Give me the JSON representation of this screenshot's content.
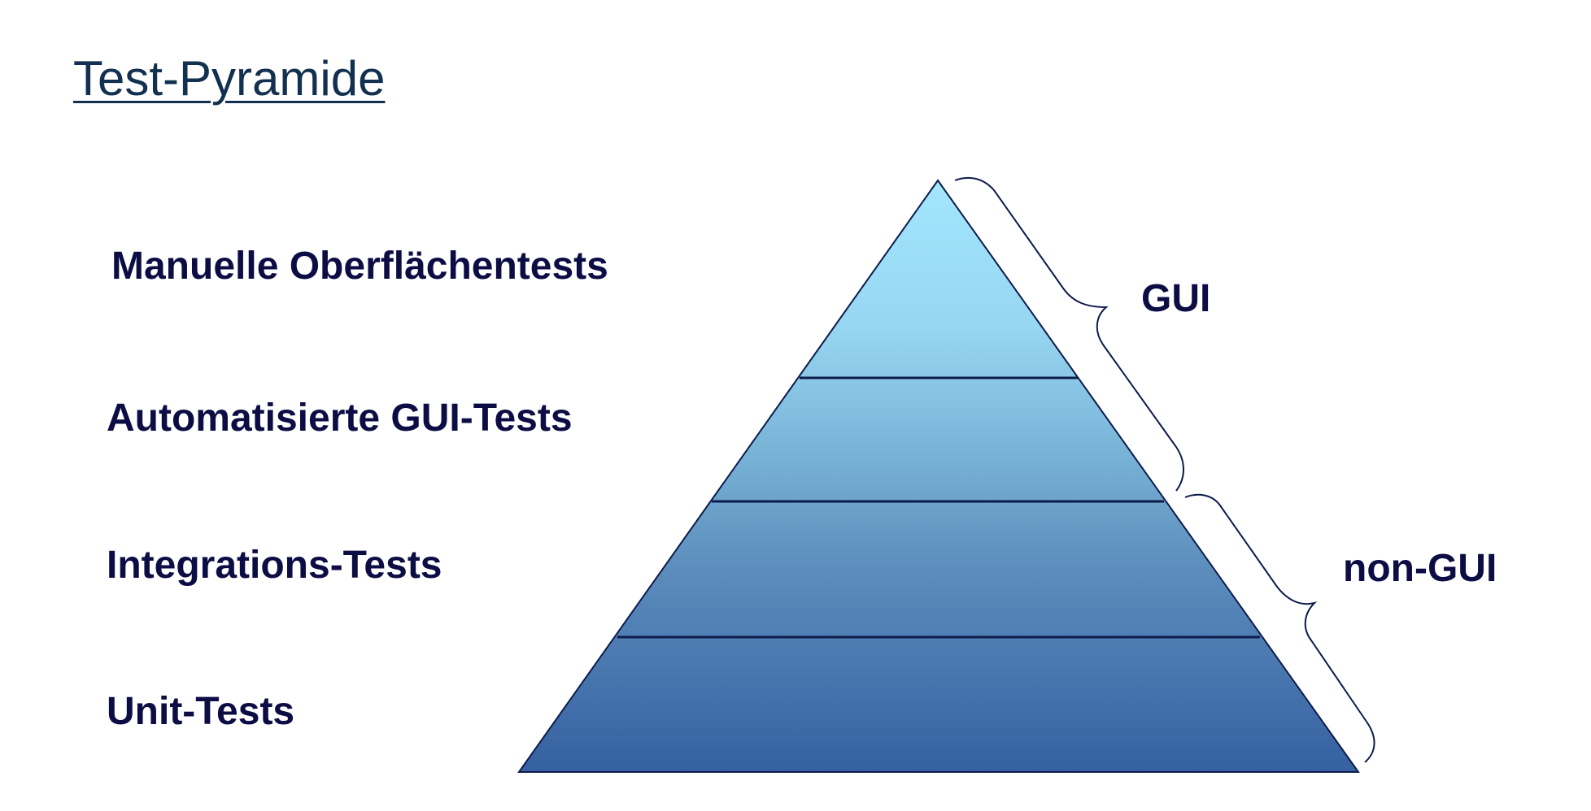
{
  "title": "Test-Pyramide",
  "layers": [
    {
      "label": "Manuelle Oberflächentests"
    },
    {
      "label": "Automatisierte GUI-Tests"
    },
    {
      "label": "Integrations-Tests"
    },
    {
      "label": "Unit-Tests"
    }
  ],
  "groups": [
    {
      "label": "GUI",
      "covers_layers": [
        0,
        1
      ]
    },
    {
      "label": "non-GUI",
      "covers_layers": [
        2,
        3
      ]
    }
  ],
  "colors": {
    "text": "#0d0d45",
    "title": "#12304f",
    "outline": "#0d1b4a",
    "gradient_top": "#a3e6fd",
    "gradient_bottom": "#3560a1"
  }
}
